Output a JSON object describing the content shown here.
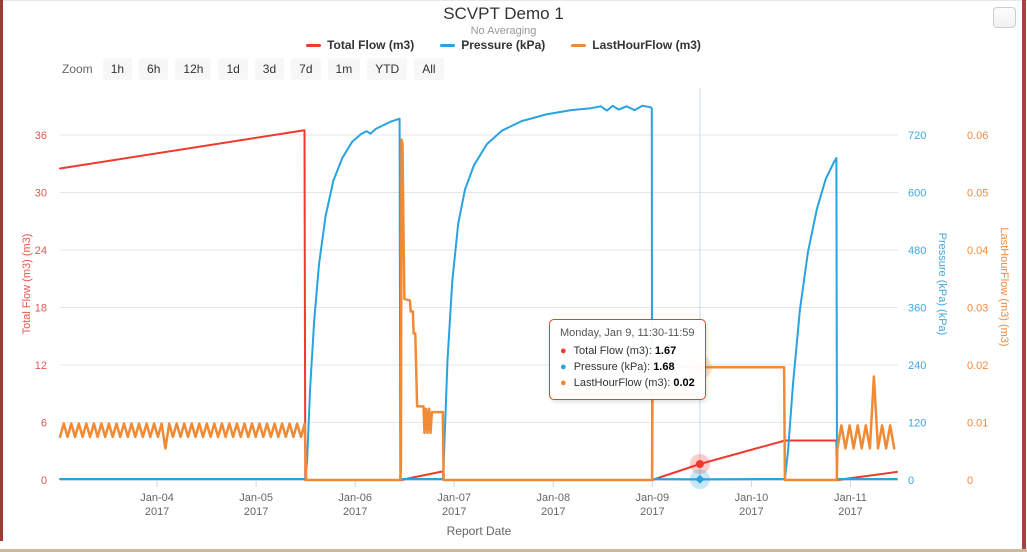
{
  "header": {
    "title": "SCVPT Demo 1",
    "subtitle": "No Averaging"
  },
  "legend": {
    "items": [
      {
        "label": "Total Flow (m3)",
        "color": "#f0392f"
      },
      {
        "label": "Pressure (kPa)",
        "color": "#27a3e0"
      },
      {
        "label": "LastHourFlow (m3)",
        "color": "#f18a34"
      }
    ]
  },
  "toolbar": {
    "zoom_label": "Zoom",
    "buttons": [
      "1h",
      "6h",
      "12h",
      "1d",
      "3d",
      "7d",
      "1m",
      "YTD",
      "All"
    ]
  },
  "tooltip": {
    "header": "Monday, Jan 9, 11:30-11:59",
    "rows": [
      {
        "label": "Total Flow (m3)",
        "value": "1.67",
        "color": "#f0392f"
      },
      {
        "label": "Pressure (kPa)",
        "value": "1.68",
        "color": "#27a3e0"
      },
      {
        "label": "LastHourFlow (m3)",
        "value": "0.02",
        "color": "#f18a34"
      }
    ]
  },
  "checkbox": {
    "checked": false
  },
  "chart_data": {
    "type": "line",
    "title": "SCVPT Demo 1",
    "subtitle": "No Averaging",
    "grid": "horizontal-only",
    "x_axis": {
      "title": "Report Date",
      "unit": "day of January 2017",
      "range_days": [
        3.02,
        11.48
      ],
      "ticks": [
        {
          "day": 4,
          "label": "Jan-04",
          "year": "2017"
        },
        {
          "day": 5,
          "label": "Jan-05",
          "year": "2017"
        },
        {
          "day": 6,
          "label": "Jan-06",
          "year": "2017"
        },
        {
          "day": 7,
          "label": "Jan-07",
          "year": "2017"
        },
        {
          "day": 8,
          "label": "Jan-08",
          "year": "2017"
        },
        {
          "day": 9,
          "label": "Jan-09",
          "year": "2017"
        },
        {
          "day": 10,
          "label": "Jan-10",
          "year": "2017"
        },
        {
          "day": 11,
          "label": "Jan-11",
          "year": "2017"
        }
      ]
    },
    "axes": [
      {
        "id": "total_flow",
        "side": "left",
        "title": "Total Flow (m3) (m3)",
        "color": "#e2574f",
        "tick_labels": [
          "0",
          "6",
          "12",
          "18",
          "24",
          "30",
          "36"
        ],
        "tick_step": 6
      },
      {
        "id": "pressure",
        "side": "right",
        "title": "Pressure (kPa) (kPa)",
        "color": "#42a7dd",
        "tick_labels": [
          "0",
          "120",
          "240",
          "360",
          "480",
          "600",
          "720"
        ],
        "tick_step": 120
      },
      {
        "id": "lasthourflow",
        "side": "far-right",
        "title": "LastHourFlow (m3) (m3)",
        "color": "#f08a3d",
        "tick_labels": [
          "0",
          "0.01",
          "0.02",
          "0.03",
          "0.04",
          "0.05",
          "0.06"
        ],
        "tick_step": 0.01
      }
    ],
    "series": [
      {
        "name": "Total Flow (m3)",
        "axis": "total_flow",
        "color": "#f0392f",
        "width": 2,
        "segments": [
          {
            "points": [
              [
                3.02,
                32.5
              ],
              [
                5.488,
                36.5
              ],
              [
                5.496,
                0
              ],
              [
                6.46,
                0
              ],
              [
                6.886,
                0.9
              ],
              [
                6.893,
                0
              ],
              [
                8.998,
                0
              ],
              [
                9.48,
                1.67
              ],
              [
                10.34,
                4.12
              ],
              [
                10.858,
                4.12
              ],
              [
                10.864,
                0
              ],
              [
                11.47,
                0.85
              ]
            ]
          }
        ]
      },
      {
        "name": "Pressure (kPa)",
        "axis": "pressure",
        "color": "#27a3e0",
        "width": 2,
        "segments": [
          {
            "points": [
              [
                3.02,
                2
              ],
              [
                5.498,
                2
              ],
              [
                5.515,
                40
              ],
              [
                5.545,
                190
              ],
              [
                5.585,
                330
              ],
              [
                5.635,
                450
              ],
              [
                5.7,
                550
              ],
              [
                5.78,
                625
              ],
              [
                5.87,
                672
              ],
              [
                5.97,
                706
              ],
              [
                6.06,
                722
              ],
              [
                6.115,
                728
              ],
              [
                6.155,
                723
              ],
              [
                6.21,
                733
              ],
              [
                6.28,
                740
              ],
              [
                6.36,
                748
              ],
              [
                6.448,
                754
              ],
              [
                6.455,
                2
              ],
              [
                6.888,
                2
              ],
              [
                6.9,
                70
              ],
              [
                6.932,
                250
              ],
              [
                6.98,
                415
              ],
              [
                7.04,
                535
              ],
              [
                7.11,
                607
              ],
              [
                7.2,
                657
              ],
              [
                7.33,
                701
              ],
              [
                7.48,
                729
              ],
              [
                7.68,
                749
              ],
              [
                7.93,
                763
              ],
              [
                8.18,
                772
              ],
              [
                8.38,
                776
              ],
              [
                8.48,
                780
              ],
              [
                8.54,
                771
              ],
              [
                8.6,
                781
              ],
              [
                8.66,
                773
              ],
              [
                8.74,
                780
              ],
              [
                8.82,
                772
              ],
              [
                8.9,
                781
              ],
              [
                8.98,
                778
              ],
              [
                8.995,
                776
              ],
              [
                8.998,
                2
              ],
              [
                9.48,
                1.68
              ],
              [
                10.338,
                2
              ],
              [
                10.37,
                60
              ],
              [
                10.42,
                200
              ],
              [
                10.49,
                355
              ],
              [
                10.57,
                475
              ],
              [
                10.66,
                565
              ],
              [
                10.75,
                628
              ],
              [
                10.83,
                662
              ],
              [
                10.858,
                672
              ],
              [
                10.864,
                2
              ],
              [
                11.47,
                2
              ]
            ]
          }
        ]
      },
      {
        "name": "LastHourFlow (m3)",
        "axis": "lasthourflow",
        "color": "#f18a34",
        "width": 2.5,
        "segments": [
          {
            "zigzag": {
              "from": 3.02,
              "to": 5.49,
              "low": 0.0075,
              "high": 0.0098,
              "period": 0.076,
              "anomalies": [
                [
                  4.09,
                  0.0055
                ]
              ]
            }
          },
          {
            "points": [
              [
                5.505,
                0
              ],
              [
                6.455,
                0
              ],
              [
                6.462,
                0.002
              ],
              [
                6.468,
                0.0592
              ],
              [
                6.478,
                0.0585
              ],
              [
                6.486,
                0.046
              ],
              [
                6.497,
                0.0315
              ],
              [
                6.553,
                0.0312
              ],
              [
                6.56,
                0.0293
              ],
              [
                6.583,
                0.0293
              ],
              [
                6.59,
                0.0255
              ],
              [
                6.607,
                0.0255
              ],
              [
                6.625,
                0.0128
              ],
              [
                6.69,
                0.0128
              ],
              [
                6.7,
                0.0082
              ],
              [
                6.715,
                0.0124
              ],
              [
                6.73,
                0.0082
              ],
              [
                6.745,
                0.0124
              ],
              [
                6.76,
                0.0082
              ],
              [
                6.775,
                0.0118
              ],
              [
                6.885,
                0.0118
              ],
              [
                6.893,
                0
              ],
              [
                8.998,
                0
              ],
              [
                9.003,
                0.0196
              ],
              [
                10.33,
                0.0196
              ],
              [
                10.338,
                0
              ],
              [
                10.862,
                0
              ]
            ]
          },
          {
            "zigzag": {
              "from": 10.868,
              "to": 11.46,
              "low": 0.0055,
              "high": 0.0095,
              "period": 0.082,
              "anomalies": [
                [
                  11.25,
                  0.018
                ]
              ]
            }
          }
        ]
      }
    ],
    "hover": {
      "x_day": 9.48,
      "label": "Monday, Jan 9, 11:30-11:59",
      "crosshair": true,
      "markers": [
        {
          "series": "Total Flow (m3)",
          "shape": "circle",
          "value": 1.67
        },
        {
          "series": "Pressure (kPa)",
          "shape": "diamond",
          "value": 1.68
        },
        {
          "series": "LastHourFlow (m3)",
          "shape": "square",
          "value": 0.0196
        }
      ]
    }
  }
}
